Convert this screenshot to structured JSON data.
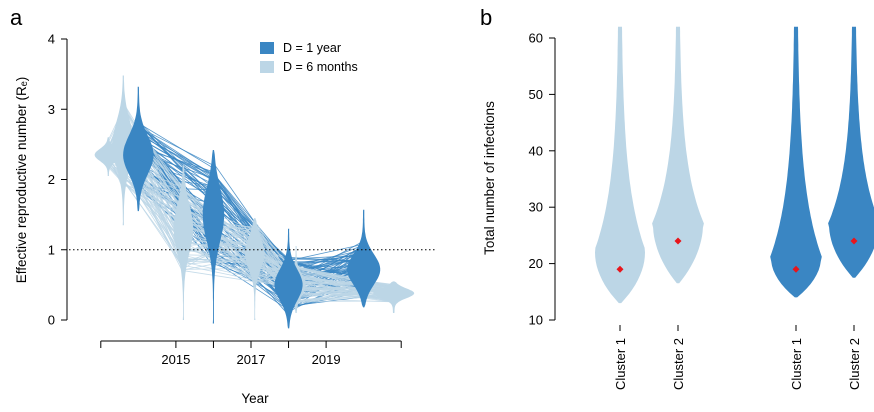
{
  "colors": {
    "d1year": "#3a86c3",
    "d6months": "#bcd6e6",
    "mean_marker": "#e8151b",
    "reference_line": "#000000"
  },
  "chart_data": [
    {
      "panel_label": "a",
      "type": "violin",
      "xlabel": "Year",
      "ylabel": "Effective reproductive number (Rₑ)",
      "ylim": [
        0,
        4
      ],
      "yticks": [
        0,
        1,
        2,
        3,
        4
      ],
      "xlim": [
        2012.1,
        2021.9
      ],
      "xticks": [
        2013,
        2015,
        2016,
        2017,
        2018,
        2019,
        2021
      ],
      "xtick_labels": [
        "",
        "2015",
        "",
        "2017",
        "",
        "2019",
        ""
      ],
      "reference_line": 1,
      "legend": {
        "placement": "top-center",
        "entries": [
          {
            "label": "D = 1 year",
            "color": "#3a86c3"
          },
          {
            "label": "D = 6 months",
            "color": "#bcd6e6"
          }
        ]
      },
      "series": [
        {
          "name": "D = 1 year",
          "color": "#3a86c3",
          "violins": [
            {
              "x": 2014.0,
              "median": 2.35,
              "top": 3.32,
              "bottom": 1.55,
              "halfwidth": 0.78
            },
            {
              "x": 2016.0,
              "median": 1.5,
              "top": 2.42,
              "bottom": -0.05,
              "halfwidth": 0.55
            },
            {
              "x": 2018.0,
              "median": 0.5,
              "top": 1.3,
              "bottom": -0.12,
              "halfwidth": 0.72
            },
            {
              "x": 2020.0,
              "median": 0.72,
              "top": 1.57,
              "bottom": 0.18,
              "halfwidth": 0.85
            }
          ]
        },
        {
          "name": "D = 6 months",
          "color": "#bcd6e6",
          "violins": [
            {
              "x": 2013.2,
              "median": 2.35,
              "top": 2.6,
              "bottom": 2.05,
              "halfwidth": 0.7
            },
            {
              "x": 2013.6,
              "median": 2.5,
              "top": 3.48,
              "bottom": 1.35,
              "halfwidth": 0.55
            },
            {
              "x": 2015.2,
              "median": 1.3,
              "top": 2.2,
              "bottom": 0.0,
              "halfwidth": 0.5
            },
            {
              "x": 2017.1,
              "median": 0.95,
              "top": 1.45,
              "bottom": 0.0,
              "halfwidth": 0.5
            },
            {
              "x": 2018.2,
              "median": 0.5,
              "top": 1.05,
              "bottom": 0.1,
              "halfwidth": 0.5
            },
            {
              "x": 2020.8,
              "median": 0.38,
              "top": 0.55,
              "bottom": 0.1,
              "halfwidth": 1.05
            }
          ]
        }
      ]
    },
    {
      "panel_label": "b",
      "type": "violin",
      "xlabel": "",
      "ylabel": "Total number of infections",
      "ylim": [
        10,
        62
      ],
      "yticks": [
        10,
        20,
        30,
        40,
        50,
        60
      ],
      "categories": [
        "Cluster 1",
        "Cluster 2",
        "Cluster 1",
        "Cluster 2"
      ],
      "series": [
        {
          "name": "D = 6 months",
          "color": "#bcd6e6",
          "violins": [
            {
              "category": 0,
              "mean": 19,
              "mode": 22,
              "top": 62,
              "bottom": 13,
              "halfwidth": 1
            },
            {
              "category": 1,
              "mean": 24,
              "mode": 27,
              "top": 62,
              "bottom": 16.5,
              "halfwidth": 1
            }
          ]
        },
        {
          "name": "D = 1 year",
          "color": "#3a86c3",
          "violins": [
            {
              "category": 2,
              "mean": 19,
              "mode": 21,
              "top": 62,
              "bottom": 14,
              "halfwidth": 1
            },
            {
              "category": 3,
              "mean": 24,
              "mode": 27,
              "top": 62,
              "bottom": 17.5,
              "halfwidth": 1
            }
          ]
        }
      ]
    }
  ]
}
